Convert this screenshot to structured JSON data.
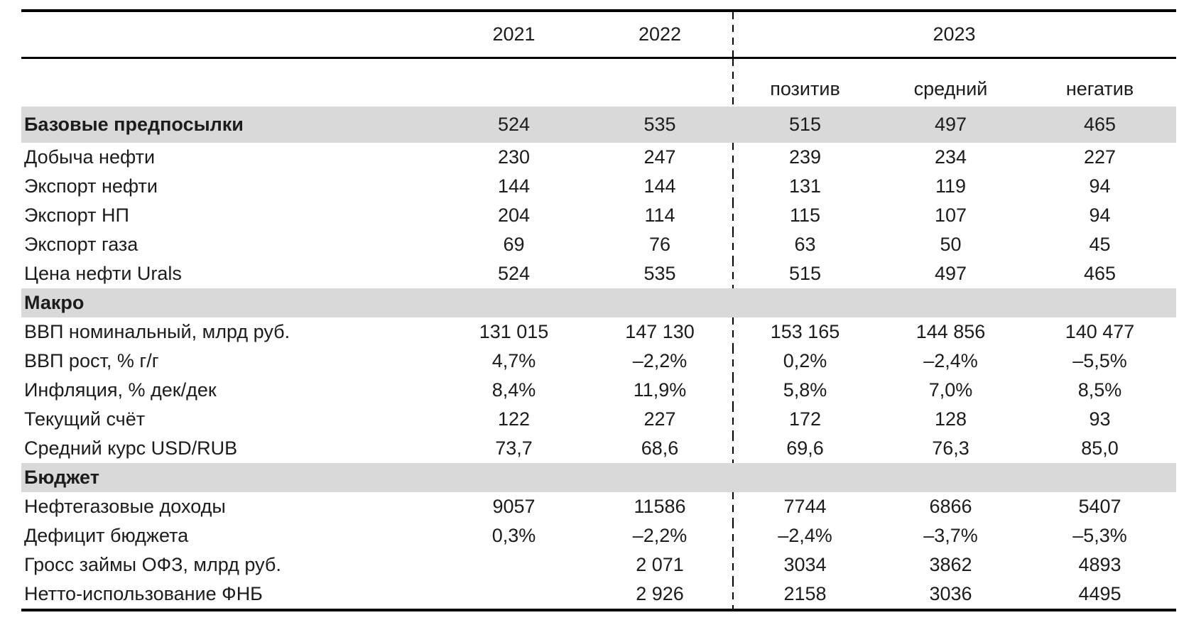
{
  "colors": {
    "band_gray": "#d9d9d9",
    "text": "#1c1c1c",
    "rule_black": "#000000"
  },
  "header": {
    "y2021": "2021",
    "y2022": "2022",
    "y2023": "2023",
    "scenario_pos": "позитив",
    "scenario_mid": "средний",
    "scenario_neg": "негатив"
  },
  "rows": [
    {
      "label": "Базовые предпосылки",
      "type": "section-with-values",
      "v": [
        "524",
        "535",
        "515",
        "497",
        "465"
      ]
    },
    {
      "label": "Добыча нефти",
      "type": "data",
      "v": [
        "230",
        "247",
        "239",
        "234",
        "227"
      ]
    },
    {
      "label": "Экспорт нефти",
      "type": "data",
      "v": [
        "144",
        "144",
        "131",
        "119",
        "94"
      ]
    },
    {
      "label": "Экспорт НП",
      "type": "data",
      "v": [
        "204",
        "114",
        "115",
        "107",
        "94"
      ]
    },
    {
      "label": "Экспорт газа",
      "type": "data",
      "v": [
        "69",
        "76",
        "63",
        "50",
        "45"
      ]
    },
    {
      "label": "Цена нефти Urals",
      "type": "data",
      "v": [
        "524",
        "535",
        "515",
        "497",
        "465"
      ]
    },
    {
      "label": "Макро",
      "type": "section",
      "v": [
        "",
        "",
        "",
        "",
        ""
      ]
    },
    {
      "label": "ВВП номинальный, млрд руб.",
      "type": "data",
      "v": [
        "131 015",
        "147 130",
        "153 165",
        "144 856",
        "140 477"
      ]
    },
    {
      "label": "ВВП рост, % г/г",
      "type": "data",
      "v": [
        "4,7%",
        "–2,2%",
        "0,2%",
        "–2,4%",
        "–5,5%"
      ]
    },
    {
      "label": "Инфляция, % дек/дек",
      "type": "data",
      "v": [
        "8,4%",
        "11,9%",
        "5,8%",
        "7,0%",
        "8,5%"
      ]
    },
    {
      "label": "Текущий счёт",
      "type": "data",
      "v": [
        "122",
        "227",
        "172",
        "128",
        "93"
      ]
    },
    {
      "label": "Средний курс USD/RUB",
      "type": "data",
      "v": [
        "73,7",
        "68,6",
        "69,6",
        "76,3",
        "85,0"
      ]
    },
    {
      "label": "Бюджет",
      "type": "section",
      "v": [
        "",
        "",
        "",
        "",
        ""
      ]
    },
    {
      "label": "Нефтегазовые доходы",
      "type": "data",
      "v": [
        "9057",
        "11586",
        "7744",
        "6866",
        "5407"
      ]
    },
    {
      "label": "Дефицит бюджета",
      "type": "data",
      "v": [
        "0,3%",
        "–2,2%",
        "–2,4%",
        "–3,7%",
        "–5,3%"
      ]
    },
    {
      "label": "Гросс займы ОФЗ, млрд руб.",
      "type": "data",
      "v": [
        "",
        "2 071",
        "3034",
        "3862",
        "4893"
      ]
    },
    {
      "label": "Нетто-использование ФНБ",
      "type": "data",
      "v": [
        "",
        "2 926",
        "2158",
        "3036",
        "4495"
      ]
    }
  ]
}
